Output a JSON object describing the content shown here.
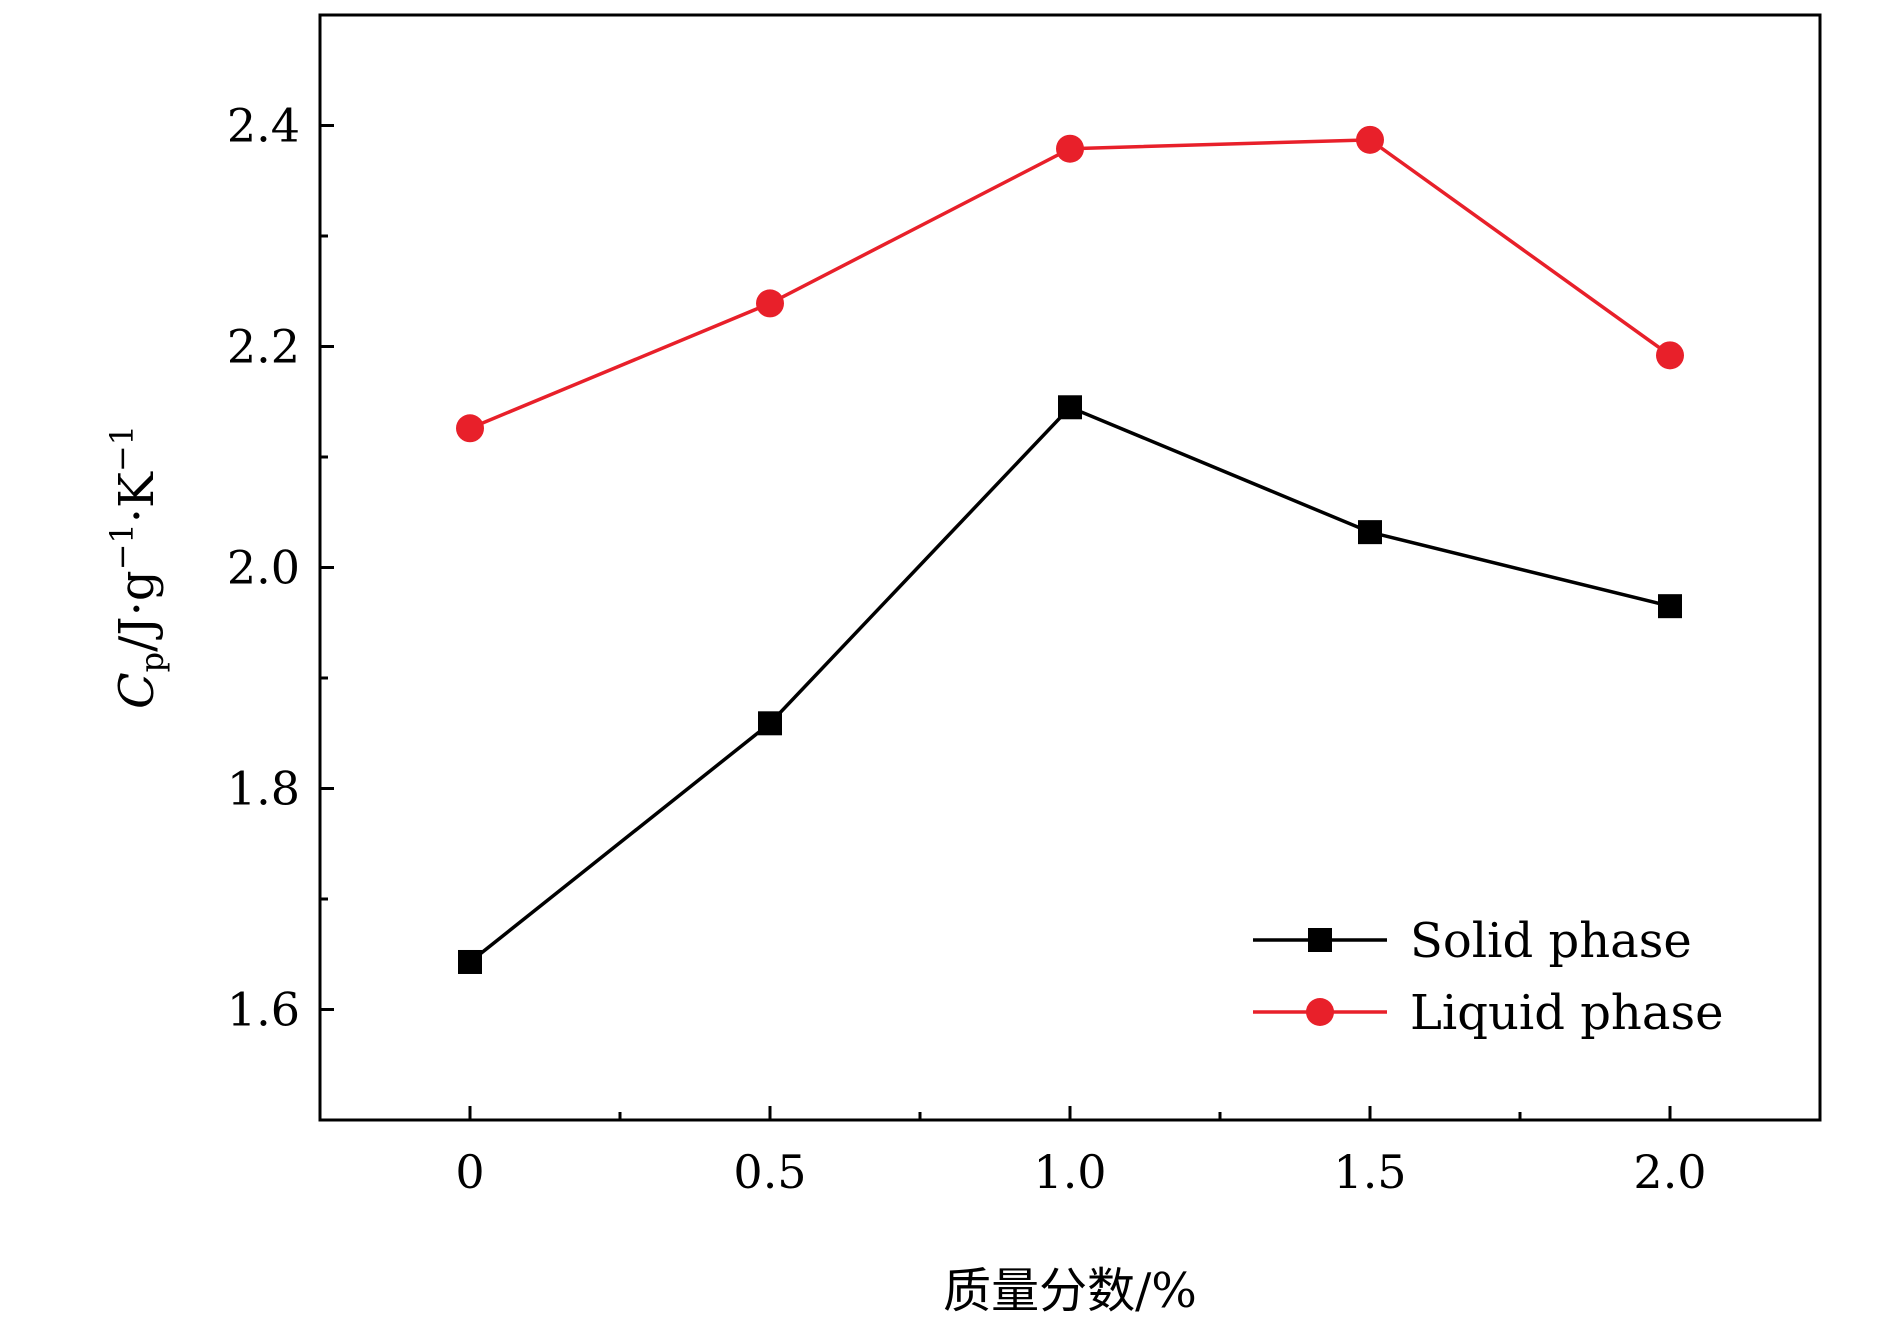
{
  "chart_data": {
    "type": "line",
    "title": "",
    "xlabel": "质量分数/%",
    "ylabel": {
      "symbol": "C",
      "subscript": "p",
      "unit_prefix": "/J·g",
      "exp1": "−1",
      "unit_mid": "·K",
      "exp2": "−1"
    },
    "x": [
      0,
      0.5,
      1.0,
      1.5,
      2.0
    ],
    "xlim": [
      -0.25,
      2.25
    ],
    "ylim": [
      1.5,
      2.5
    ],
    "xticks": [
      {
        "value": 0,
        "label": "0"
      },
      {
        "value": 0.5,
        "label": "0.5"
      },
      {
        "value": 1.0,
        "label": "1.0"
      },
      {
        "value": 1.5,
        "label": "1.5"
      },
      {
        "value": 2.0,
        "label": "2.0"
      }
    ],
    "xminor": [
      0.25,
      0.75,
      1.25,
      1.75
    ],
    "yticks": [
      {
        "value": 1.6,
        "label": "1.6"
      },
      {
        "value": 1.8,
        "label": "1.8"
      },
      {
        "value": 2.0,
        "label": "2.0"
      },
      {
        "value": 2.2,
        "label": "2.2"
      },
      {
        "value": 2.4,
        "label": "2.4"
      }
    ],
    "yminor": [
      1.7,
      1.9,
      2.1,
      2.3
    ],
    "grid": false,
    "legend_position": "bottom-right",
    "series": [
      {
        "name": "Solid phase",
        "color": "#000000",
        "marker": "square",
        "values": [
          1.643,
          1.859,
          2.145,
          2.032,
          1.965
        ]
      },
      {
        "name": "Liquid phase",
        "color": "#e8202a",
        "marker": "circle",
        "values": [
          2.126,
          2.239,
          2.379,
          2.387,
          2.192
        ]
      }
    ]
  }
}
